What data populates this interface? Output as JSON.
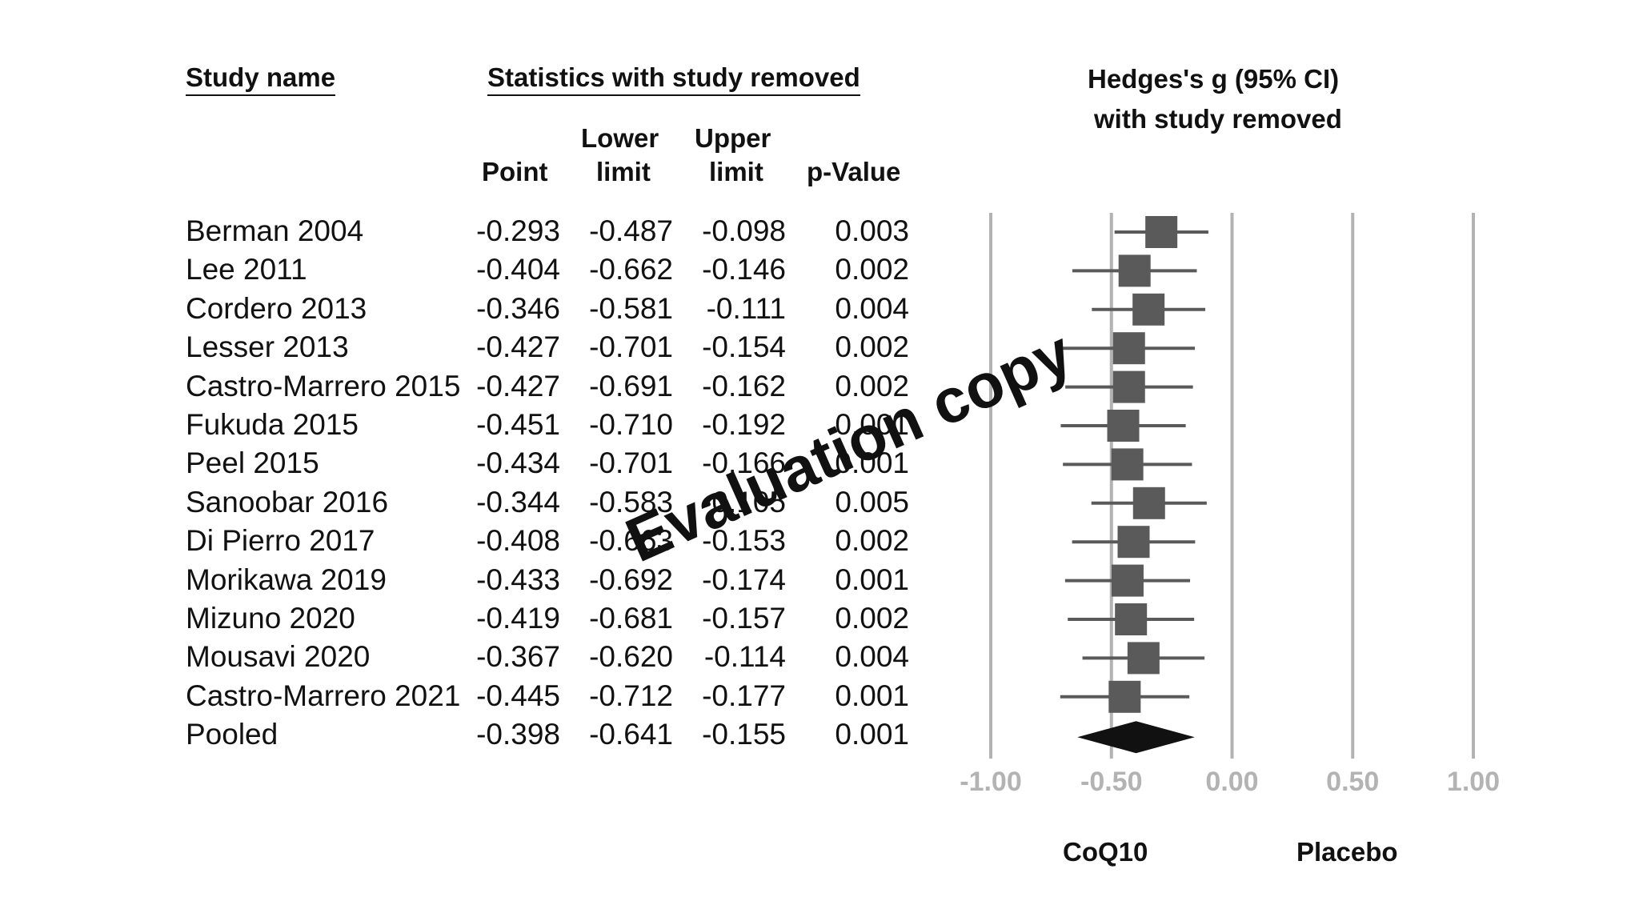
{
  "headers": {
    "study_name": "Study name",
    "stats_group": "Statistics with study removed",
    "point": "Point",
    "lower_1": "Lower",
    "lower_2": "limit",
    "upper_1": "Upper",
    "upper_2": "limit",
    "pvalue": "p-Value",
    "forest_1": "Hedges's g (95% CI)",
    "forest_2": "with study removed"
  },
  "side_labels": {
    "left": "CoQ10",
    "right": "Placebo"
  },
  "watermark": "Evaluation copy",
  "chart_data": {
    "type": "forest",
    "x_ticks": [
      -1.0,
      -0.5,
      0.0,
      0.5,
      1.0
    ],
    "x_tick_labels": [
      "-1.00",
      "-0.50",
      "0.00",
      "0.50",
      "1.00"
    ],
    "xlim": [
      -1.0,
      1.0
    ],
    "rows": [
      {
        "study": "Berman 2004",
        "point": "-0.293",
        "lower": "-0.487",
        "upper": "-0.098",
        "p": "0.003",
        "g": -0.293,
        "lo": -0.487,
        "hi": -0.098
      },
      {
        "study": "Lee 2011",
        "point": "-0.404",
        "lower": "-0.662",
        "upper": "-0.146",
        "p": "0.002",
        "g": -0.404,
        "lo": -0.662,
        "hi": -0.146
      },
      {
        "study": "Cordero 2013",
        "point": "-0.346",
        "lower": "-0.581",
        "upper": "-0.111",
        "p": "0.004",
        "g": -0.346,
        "lo": -0.581,
        "hi": -0.111
      },
      {
        "study": "Lesser 2013",
        "point": "-0.427",
        "lower": "-0.701",
        "upper": "-0.154",
        "p": "0.002",
        "g": -0.427,
        "lo": -0.701,
        "hi": -0.154
      },
      {
        "study": "Castro-Marrero 2015",
        "point": "-0.427",
        "lower": "-0.691",
        "upper": "-0.162",
        "p": "0.002",
        "g": -0.427,
        "lo": -0.691,
        "hi": -0.162
      },
      {
        "study": "Fukuda 2015",
        "point": "-0.451",
        "lower": "-0.710",
        "upper": "-0.192",
        "p": "0.001",
        "g": -0.451,
        "lo": -0.71,
        "hi": -0.192
      },
      {
        "study": "Peel 2015",
        "point": "-0.434",
        "lower": "-0.701",
        "upper": "-0.166",
        "p": "0.001",
        "g": -0.434,
        "lo": -0.701,
        "hi": -0.166
      },
      {
        "study": "Sanoobar 2016",
        "point": "-0.344",
        "lower": "-0.583",
        "upper": "-0.105",
        "p": "0.005",
        "g": -0.344,
        "lo": -0.583,
        "hi": -0.105
      },
      {
        "study": "Di Pierro 2017",
        "point": "-0.408",
        "lower": "-0.663",
        "upper": "-0.153",
        "p": "0.002",
        "g": -0.408,
        "lo": -0.663,
        "hi": -0.153
      },
      {
        "study": "Morikawa 2019",
        "point": "-0.433",
        "lower": "-0.692",
        "upper": "-0.174",
        "p": "0.001",
        "g": -0.433,
        "lo": -0.692,
        "hi": -0.174
      },
      {
        "study": "Mizuno 2020",
        "point": "-0.419",
        "lower": "-0.681",
        "upper": "-0.157",
        "p": "0.002",
        "g": -0.419,
        "lo": -0.681,
        "hi": -0.157
      },
      {
        "study": "Mousavi 2020",
        "point": "-0.367",
        "lower": "-0.620",
        "upper": "-0.114",
        "p": "0.004",
        "g": -0.367,
        "lo": -0.62,
        "hi": -0.114
      },
      {
        "study": "Castro-Marrero 2021",
        "point": "-0.445",
        "lower": "-0.712",
        "upper": "-0.177",
        "p": "0.001",
        "g": -0.445,
        "lo": -0.712,
        "hi": -0.177
      }
    ],
    "pooled": {
      "study": "Pooled",
      "point": "-0.398",
      "lower": "-0.641",
      "upper": "-0.155",
      "p": "0.001",
      "g": -0.398,
      "lo": -0.641,
      "hi": -0.155
    },
    "colors": {
      "marker": "#5a5a5a",
      "diamond": "#111111",
      "gridline": "#b3b3b3",
      "whisker": "#5a5a5a"
    }
  }
}
